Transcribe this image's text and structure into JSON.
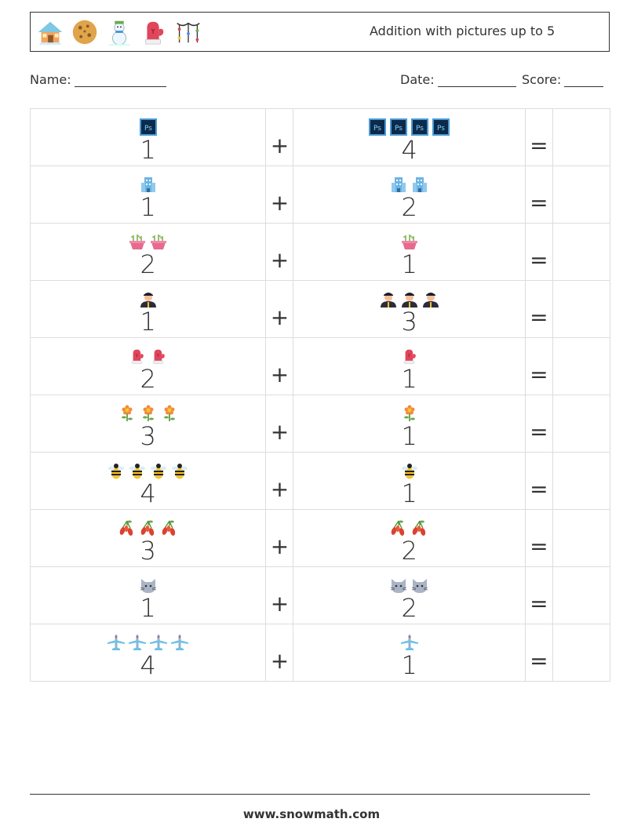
{
  "header": {
    "title": "Addition with pictures up to 5",
    "icons": [
      "snow-house-icon",
      "cookie-icon",
      "snowman-icon",
      "mitten-icon",
      "christmas-lights-icon"
    ]
  },
  "form": {
    "name_label": "Name:",
    "date_label": "Date:",
    "score_label": "Score:"
  },
  "operators": {
    "plus": "+",
    "equals": "="
  },
  "problems": [
    {
      "a": 1,
      "b": 4,
      "icon": "photoshop-icon"
    },
    {
      "a": 1,
      "b": 2,
      "icon": "building-icon"
    },
    {
      "a": 2,
      "b": 1,
      "icon": "flower-pot-icon"
    },
    {
      "a": 1,
      "b": 3,
      "icon": "police-officer-icon"
    },
    {
      "a": 2,
      "b": 1,
      "icon": "mitten-icon"
    },
    {
      "a": 3,
      "b": 1,
      "icon": "flower-icon"
    },
    {
      "a": 4,
      "b": 1,
      "icon": "bee-icon"
    },
    {
      "a": 3,
      "b": 2,
      "icon": "goji-berry-icon"
    },
    {
      "a": 1,
      "b": 2,
      "icon": "cat-icon"
    },
    {
      "a": 4,
      "b": 1,
      "icon": "airplane-icon"
    }
  ],
  "footer": {
    "website": "www.snowmath.com"
  }
}
